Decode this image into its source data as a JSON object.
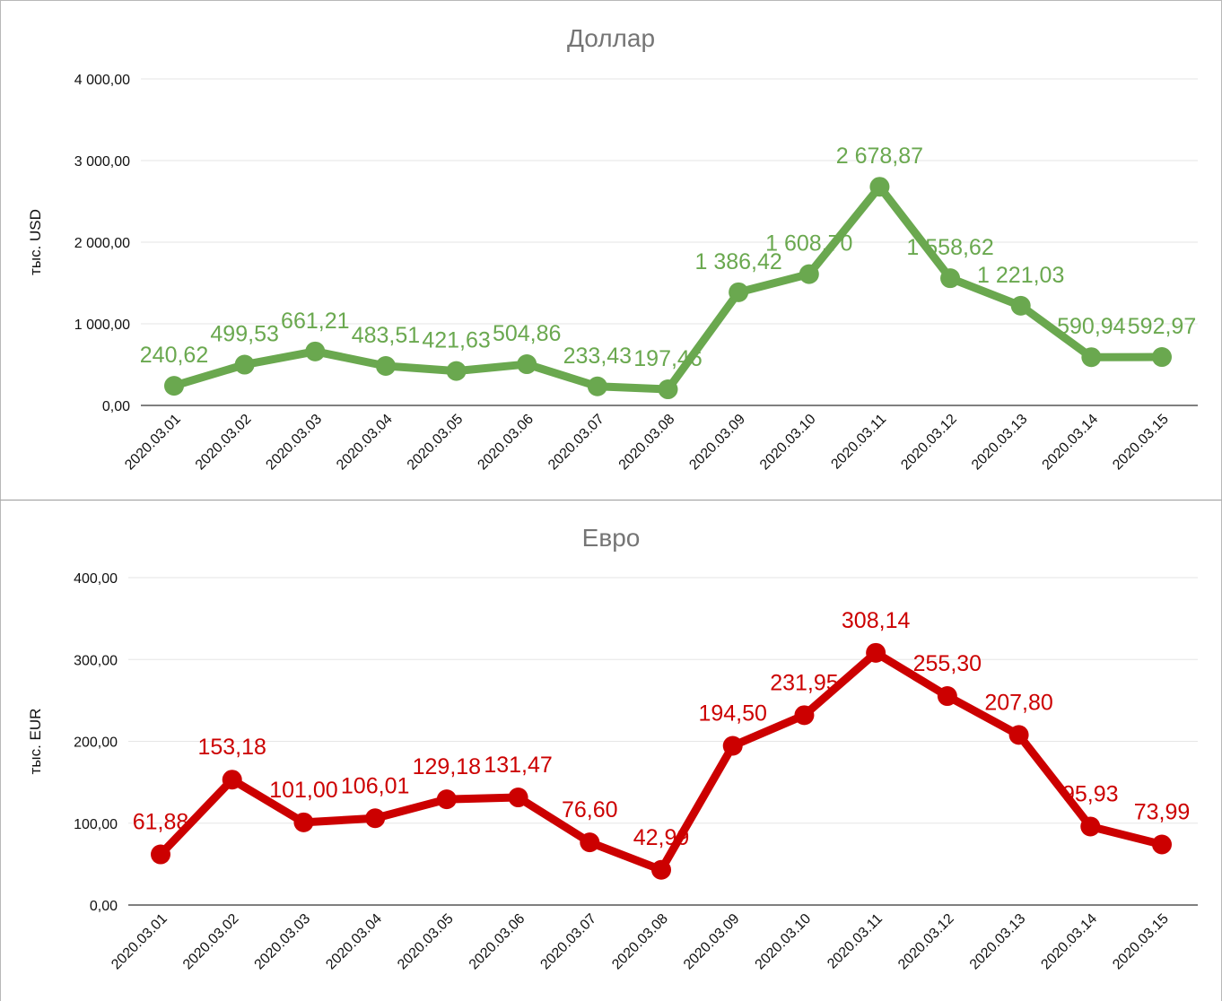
{
  "chart_data": [
    {
      "type": "line",
      "title": "Доллар",
      "ylabel": "тыс. USD",
      "xlabel": "",
      "color": "#6aa84f",
      "ylim": [
        0,
        4000
      ],
      "yticks": [
        "0,00",
        "1 000,00",
        "2 000,00",
        "3 000,00",
        "4 000,00"
      ],
      "categories": [
        "2020.03.01",
        "2020.03.02",
        "2020.03.03",
        "2020.03.04",
        "2020.03.05",
        "2020.03.06",
        "2020.03.07",
        "2020.03.08",
        "2020.03.09",
        "2020.03.10",
        "2020.03.11",
        "2020.03.12",
        "2020.03.13",
        "2020.03.14",
        "2020.03.15"
      ],
      "values": [
        240.62,
        499.53,
        661.21,
        483.51,
        421.63,
        504.86,
        233.43,
        197.46,
        1386.42,
        1608.7,
        2678.87,
        1558.62,
        1221.03,
        590.94,
        592.97
      ],
      "labels": [
        "240,62",
        "499,53",
        "661,21",
        "483,51",
        "421,63",
        "504,86",
        "233,43",
        "197,46",
        "1 386,42",
        "1 608,70",
        "2 678,87",
        "1 558,62",
        "1 221,03",
        "590,94",
        "592,97"
      ],
      "grid": true,
      "legend": "none"
    },
    {
      "type": "line",
      "title": "Евро",
      "ylabel": "тыс. EUR",
      "xlabel": "",
      "color": "#cc0000",
      "ylim": [
        0,
        400
      ],
      "yticks": [
        "0,00",
        "100,00",
        "200,00",
        "300,00",
        "400,00"
      ],
      "categories": [
        "2020.03.01",
        "2020.03.02",
        "2020.03.03",
        "2020.03.04",
        "2020.03.05",
        "2020.03.06",
        "2020.03.07",
        "2020.03.08",
        "2020.03.09",
        "2020.03.10",
        "2020.03.11",
        "2020.03.12",
        "2020.03.13",
        "2020.03.14",
        "2020.03.15"
      ],
      "values": [
        61.88,
        153.18,
        101.0,
        106.01,
        129.18,
        131.47,
        76.6,
        42.99,
        194.5,
        231.95,
        308.14,
        255.3,
        207.8,
        95.93,
        73.99
      ],
      "labels": [
        "61,88",
        "153,18",
        "101,00",
        "106,01",
        "129,18",
        "131,47",
        "76,60",
        "42,99",
        "194,50",
        "231,95",
        "308,14",
        "255,30",
        "207,80",
        "95,93",
        "73,99"
      ],
      "grid": true,
      "legend": "none"
    }
  ]
}
